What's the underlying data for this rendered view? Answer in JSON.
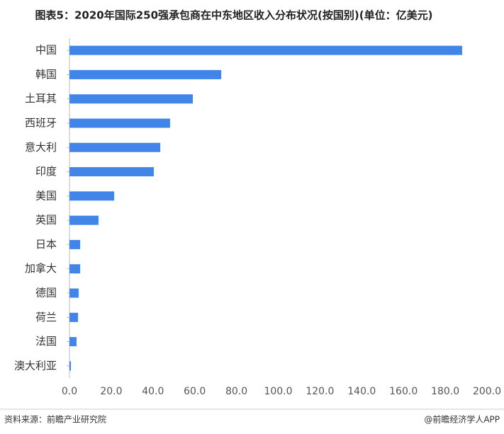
{
  "chart_data": {
    "type": "barh",
    "title": "图表5：2020年国际250强承包商在中东地区收入分布状况(按国别)(单位：亿美元)",
    "categories": [
      "中国",
      "韩国",
      "土耳其",
      "西班牙",
      "意大利",
      "印度",
      "美国",
      "英国",
      "日本",
      "加拿大",
      "德国",
      "荷兰",
      "法国",
      "澳大利亚"
    ],
    "values": [
      188.1,
      72.7,
      59.1,
      48.2,
      43.5,
      40.4,
      21.4,
      13.9,
      5.1,
      5.1,
      4.4,
      4.1,
      3.4,
      0.7
    ],
    "color": "#4285e8",
    "xlim": [
      0,
      200
    ],
    "xticks": [
      {
        "value": 0,
        "label": "0.0"
      },
      {
        "value": 20,
        "label": "20.0"
      },
      {
        "value": 40,
        "label": "40.0"
      },
      {
        "value": 60,
        "label": "60.0"
      },
      {
        "value": 80,
        "label": "80.0"
      },
      {
        "value": 100,
        "label": "100.0"
      },
      {
        "value": 120,
        "label": "120.0"
      },
      {
        "value": 140,
        "label": "140.0"
      },
      {
        "value": 160,
        "label": "160.0"
      },
      {
        "value": 180,
        "label": "180.0"
      },
      {
        "value": 200,
        "label": "200.0"
      }
    ],
    "grid": false
  },
  "footer": {
    "source": "资料来源：前瞻产业研究院",
    "credit": "@前瞻经济学人APP"
  }
}
